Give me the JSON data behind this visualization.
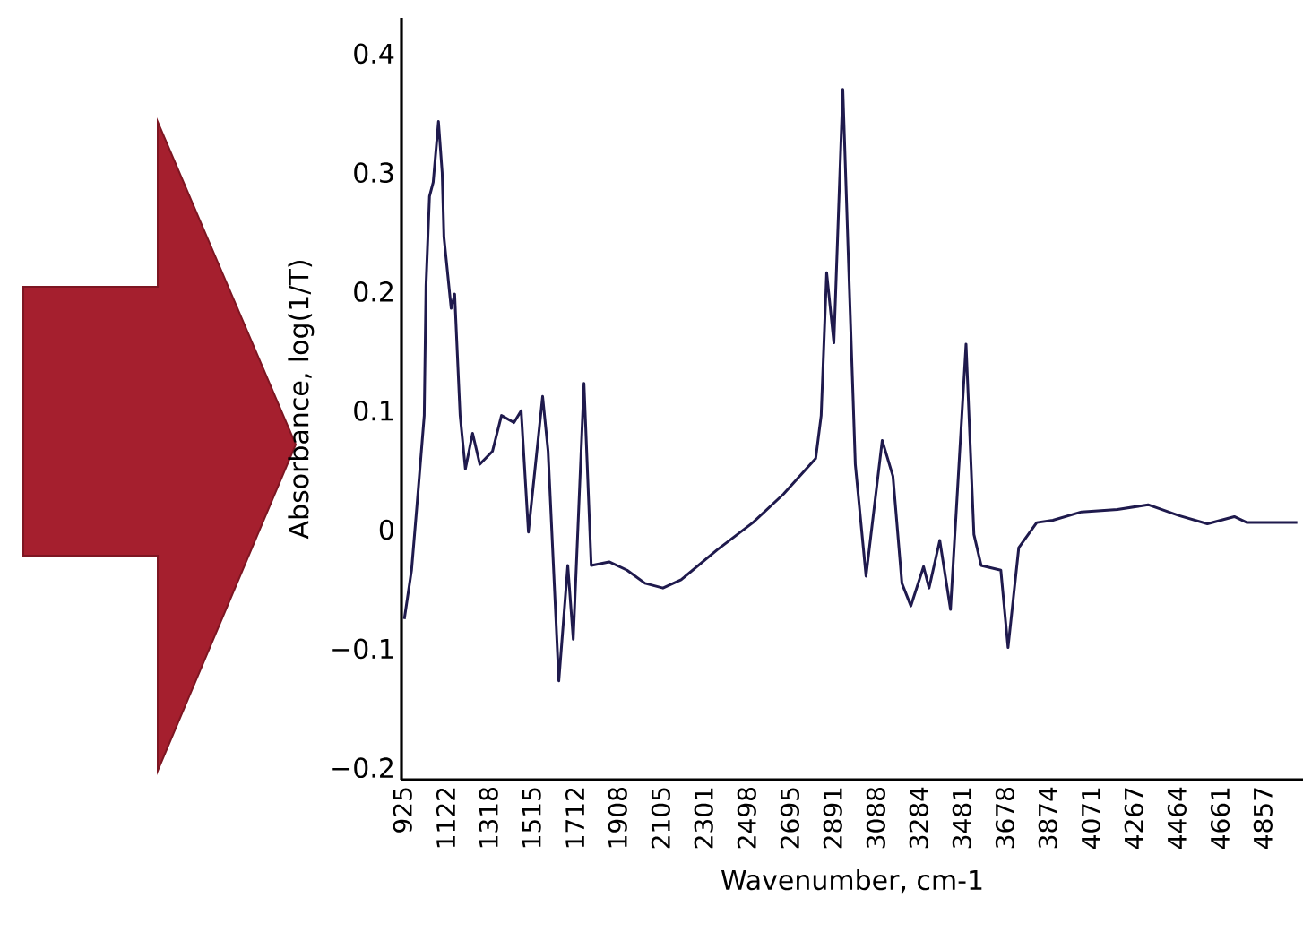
{
  "chart_data": {
    "type": "line",
    "xlabel": "Wavenumber, cm-1",
    "ylabel": "Absorbance, log(1/T)",
    "x": [
      933,
      966,
      991,
      1024,
      1032,
      1048,
      1065,
      1089,
      1106,
      1114,
      1147,
      1163,
      1171,
      1188,
      1212,
      1245,
      1278,
      1336,
      1377,
      1434,
      1467,
      1500,
      1565,
      1590,
      1639,
      1680,
      1705,
      1754,
      1787,
      1869,
      1951,
      2033,
      2115,
      2198,
      2362,
      2526,
      2666,
      2813,
      2838,
      2863,
      2896,
      2937,
      2961,
      2994,
      3043,
      3117,
      3166,
      3207,
      3248,
      3306,
      3331,
      3380,
      3429,
      3500,
      3536,
      3569,
      3659,
      3692,
      3741,
      3823,
      3897,
      4028,
      4192,
      4332,
      4471,
      4603,
      4726,
      4784,
      5014
    ],
    "series": [
      {
        "color": "#1f1a4d",
        "values": [
          -0.075,
          -0.034,
          0.021,
          0.096,
          0.205,
          0.28,
          0.292,
          0.343,
          0.3,
          0.246,
          0.186,
          0.198,
          0.165,
          0.096,
          0.051,
          0.081,
          0.055,
          0.066,
          0.096,
          0.09,
          0.1,
          -0.002,
          0.112,
          0.066,
          -0.127,
          -0.03,
          -0.092,
          0.123,
          -0.03,
          -0.027,
          -0.034,
          -0.045,
          -0.049,
          -0.042,
          -0.017,
          0.006,
          0.03,
          0.06,
          0.096,
          0.216,
          0.157,
          0.37,
          0.235,
          0.055,
          -0.039,
          0.075,
          0.045,
          -0.045,
          -0.064,
          -0.031,
          -0.049,
          -0.009,
          -0.067,
          0.156,
          -0.004,
          -0.03,
          -0.034,
          -0.099,
          -0.015,
          0.006,
          0.008,
          0.015,
          0.017,
          0.021,
          0.012,
          0.005,
          0.011,
          0.006,
          0.006
        ]
      }
    ],
    "xlim": [
      920,
      5040
    ],
    "ylim": [
      -0.21,
      0.43
    ],
    "xticks": [
      925,
      1122,
      1318,
      1515,
      1712,
      1908,
      2105,
      2301,
      2498,
      2695,
      2891,
      3088,
      3284,
      3481,
      3678,
      3874,
      4071,
      4267,
      4464,
      4661,
      4857
    ],
    "yticks": [
      {
        "value": -0.2,
        "label": "−0.2"
      },
      {
        "value": -0.1,
        "label": "−0.1"
      },
      0,
      0.1,
      0.2,
      0.3,
      0.4
    ]
  }
}
